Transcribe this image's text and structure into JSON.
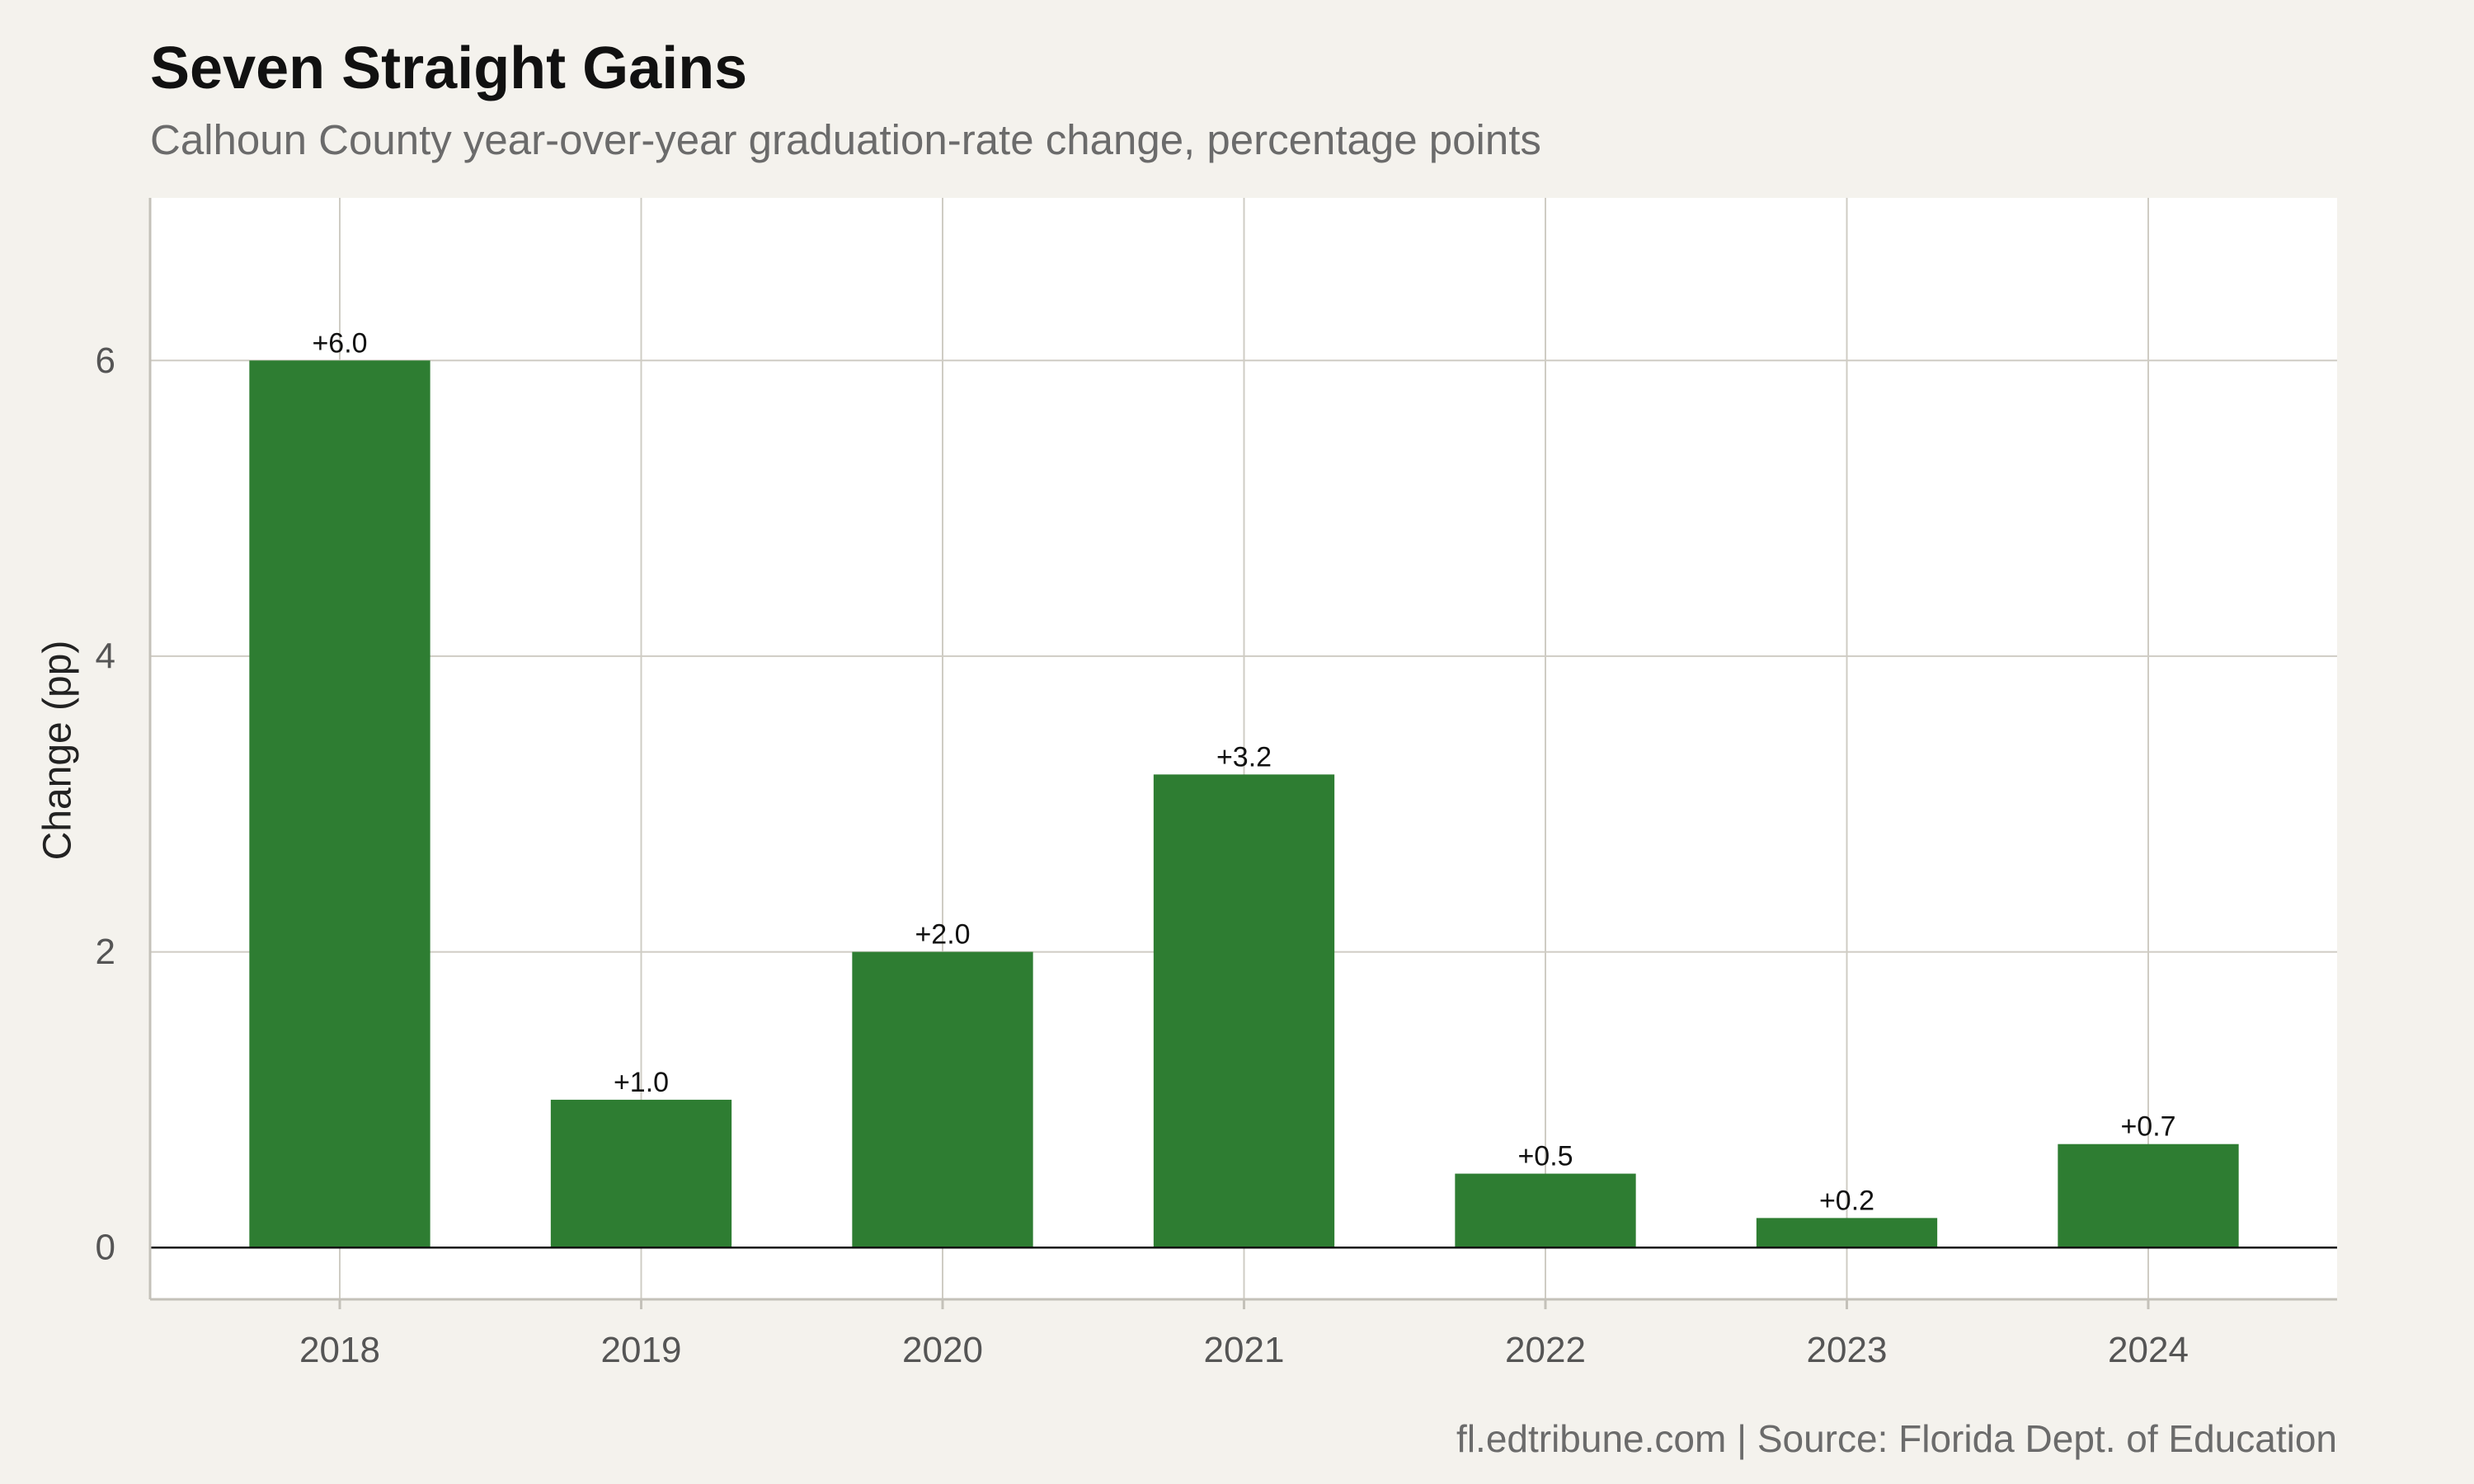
{
  "chart_data": {
    "type": "bar",
    "title": "Seven Straight Gains",
    "subtitle": "Calhoun County year-over-year graduation-rate change, percentage points",
    "xlabel": "",
    "ylabel": "Change (pp)",
    "caption": "fl.edtribune.com | Source: Florida Dept. of Education",
    "categories": [
      "2018",
      "2019",
      "2020",
      "2021",
      "2022",
      "2023",
      "2024"
    ],
    "values": [
      6.0,
      1.0,
      2.0,
      3.2,
      0.5,
      0.2,
      0.7
    ],
    "data_labels": [
      "+6.0",
      "+1.0",
      "+2.0",
      "+3.2",
      "+0.5",
      "+0.2",
      "+0.7"
    ],
    "ylim": [
      -0.35,
      7.1
    ],
    "yticks": [
      0,
      2,
      4,
      6
    ],
    "ytick_labels": [
      "0",
      "2",
      "4",
      "6"
    ],
    "grid": true,
    "legend": "none",
    "colors": {
      "bar": "#2e7d32",
      "panel": "#ffffff",
      "background": "#f4f2ed",
      "grid": "#cfccc4",
      "zero_line": "#111111"
    }
  }
}
